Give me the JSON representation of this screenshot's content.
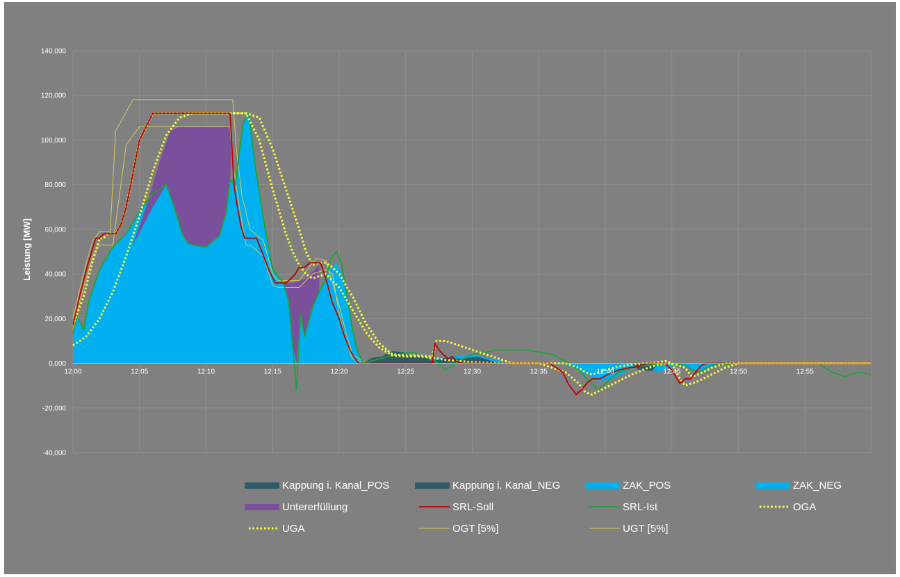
{
  "chart_data": {
    "type": "area",
    "title": "",
    "xlabel": "",
    "ylabel": "Leistung [MW]",
    "ylim": [
      -40000,
      140000
    ],
    "xlim": [
      0,
      60
    ],
    "grid": true,
    "legend_position": "bottom",
    "y_ticks": [
      140000,
      120000,
      100000,
      80000,
      60000,
      40000,
      20000,
      0,
      -20000,
      -40000
    ],
    "y_tick_labels": [
      "140,000",
      "120,000",
      "100,000",
      "80,000",
      "60,000",
      "40,000",
      "20,000",
      "0,000",
      "-20,000",
      "-40,000"
    ],
    "x_ticks": [
      0,
      5,
      10,
      15,
      20,
      25,
      30,
      35,
      40,
      45,
      50,
      55
    ],
    "x_tick_labels": [
      "12:00",
      "12:05",
      "12:10",
      "12:15",
      "12:20",
      "12:25",
      "12:30",
      "12:35",
      "12:40",
      "12:45",
      "12:50",
      "12:55"
    ],
    "series": [
      {
        "name": "Kappung i. Kanal_POS",
        "kind": "area",
        "color": "#2f5a68",
        "x": [
          21.8,
          22.5,
          23.2,
          24.0,
          24.8,
          25.6,
          26.2,
          27.0,
          28.0,
          29.2,
          30.4,
          31.2,
          32.0
        ],
        "y": [
          0,
          2500,
          3000,
          5500,
          5000,
          3000,
          3500,
          1000,
          2500,
          2000,
          3000,
          1500,
          0
        ]
      },
      {
        "name": "Kappung i. Kanal_NEG",
        "kind": "area",
        "color": "#2f5a68",
        "x": [
          42.0,
          42.5,
          43.5,
          44.0
        ],
        "y": [
          0,
          -3000,
          -3500,
          0
        ]
      },
      {
        "name": "ZAK_POS",
        "kind": "area",
        "color": "#00b0f0",
        "x": [
          0,
          0.3,
          0.8,
          1.2,
          2.0,
          3.0,
          4.0,
          5.0,
          6.0,
          7.0,
          7.6,
          8.2,
          8.6,
          9.0,
          10.0,
          11.0,
          11.5,
          11.8,
          12.2,
          12.8,
          13.2,
          13.7,
          14.3,
          15.0,
          15.8,
          16.2,
          16.5,
          16.8,
          17.1,
          17.4,
          18.0,
          18.5,
          19.0,
          19.4,
          19.8,
          20.2,
          20.6,
          21.0,
          21.4,
          21.8,
          23.0,
          24.0,
          25.5,
          27.0,
          28.5,
          30.0,
          31.5,
          33.0
        ],
        "y": [
          13000,
          21000,
          15000,
          28000,
          42000,
          52000,
          58000,
          68000,
          76000,
          80000,
          70000,
          58000,
          54000,
          53000,
          52000,
          57000,
          67000,
          82000,
          80000,
          108000,
          112000,
          88000,
          65000,
          42000,
          36000,
          28000,
          8000,
          0,
          22000,
          12000,
          25000,
          32000,
          38000,
          43000,
          45000,
          40000,
          30000,
          15000,
          5000,
          0,
          2000,
          3500,
          3000,
          2000,
          3000,
          4000,
          2000,
          0
        ]
      },
      {
        "name": "ZAK_NEG",
        "kind": "area",
        "color": "#00b0f0",
        "x": [
          37.0,
          38.5,
          39.5,
          40.5,
          41.5,
          42.0,
          42.5,
          44.0,
          45.5,
          46.5,
          47.5,
          48.5
        ],
        "y": [
          0,
          -4500,
          -8000,
          -7000,
          -4000,
          -2500,
          -500,
          -4000,
          -500,
          -2500,
          -3000,
          0
        ]
      },
      {
        "name": "Untererfüllung",
        "kind": "area",
        "color": "#7a4f9b",
        "x": [
          4.5,
          5.3,
          6.0,
          7.0,
          7.6,
          8.2,
          8.6,
          9.0,
          10.0,
          11.0,
          11.5,
          11.8,
          11.9,
          12.0,
          11.0,
          10.0,
          9.0,
          8.0,
          7.3,
          6.5,
          5.6,
          4.5
        ],
        "y": [
          53000,
          62000,
          70000,
          80000,
          70000,
          58000,
          54000,
          53000,
          52000,
          57000,
          67000,
          80000,
          106000,
          106000,
          106000,
          106000,
          106000,
          106000,
          104000,
          90000,
          72000,
          53000
        ]
      },
      {
        "name": "Untererfüllung",
        "kind": "area",
        "color": "#7a4f9b",
        "x": [
          15.8,
          16.2,
          16.5,
          16.8,
          17.1,
          17.4,
          18.0,
          18.5,
          18.5,
          17.5,
          16.5,
          15.8
        ],
        "y": [
          36000,
          28000,
          8000,
          0,
          22000,
          12000,
          25000,
          32000,
          44000,
          38000,
          36000,
          36000
        ]
      },
      {
        "name": "SRL-Soll",
        "kind": "line",
        "color": "#c00000",
        "x": [
          0,
          0.2,
          0.5,
          0.8,
          1.1,
          1.4,
          1.7,
          2.0,
          2.3,
          2.6,
          2.9,
          3.2,
          3.6,
          4.0,
          4.5,
          5.0,
          6.0,
          7.0,
          8.0,
          9.0,
          10.0,
          11.0,
          11.8,
          12.1,
          12.3,
          12.6,
          12.9,
          13.2,
          13.5,
          13.8,
          14.2,
          14.7,
          15.2,
          15.4,
          16.0,
          16.4,
          16.7,
          17.0,
          17.4,
          17.8,
          18.2,
          18.6,
          19.0,
          19.5,
          20.0,
          20.4,
          20.8,
          21.2,
          21.5,
          27.0,
          27.2,
          27.5,
          27.8,
          28.2,
          28.5,
          28.8,
          29.2,
          35.8,
          36.2,
          36.8,
          37.2,
          37.8,
          38.2,
          38.6,
          39.0,
          39.6,
          40.2,
          41.0,
          41.8,
          42.5,
          43.0,
          43.5,
          44.0,
          44.5,
          45.0,
          45.6,
          46.0,
          46.4,
          46.8,
          47.2,
          47.6,
          60
        ],
        "y": [
          17000,
          22000,
          30000,
          37000,
          44000,
          50000,
          56000,
          56000,
          58000,
          58000,
          58000,
          58000,
          62000,
          70000,
          85000,
          100000,
          112000,
          112000,
          112000,
          112000,
          112000,
          112000,
          112000,
          80000,
          72000,
          62000,
          56000,
          56000,
          56000,
          56000,
          50000,
          42000,
          36000,
          36000,
          36000,
          38000,
          40000,
          43000,
          43000,
          45000,
          45000,
          45000,
          38000,
          27000,
          20000,
          12000,
          6000,
          2000,
          0,
          0,
          9000,
          6000,
          4000,
          2000,
          3000,
          1000,
          0,
          0,
          -1500,
          -4000,
          -9000,
          -14000,
          -12000,
          -9000,
          -7000,
          -7000,
          -5000,
          -3000,
          -2000,
          -1500,
          0,
          0,
          0,
          0,
          -3000,
          -9000,
          -7000,
          -7000,
          -4000,
          -1000,
          0,
          0
        ]
      },
      {
        "name": "SRL-Ist",
        "kind": "line",
        "color": "#1fa33a",
        "x": [
          0,
          0.3,
          0.8,
          1.2,
          2.0,
          3.0,
          4.0,
          5.0,
          6.0,
          7.0,
          7.6,
          8.2,
          8.6,
          9.0,
          10.0,
          11.0,
          11.5,
          11.8,
          12.2,
          12.8,
          13.2,
          13.7,
          14.3,
          15.0,
          15.8,
          16.2,
          16.5,
          16.8,
          17.1,
          17.4,
          18.0,
          18.5,
          19.0,
          19.4,
          19.8,
          20.2,
          20.6,
          21.0,
          21.4,
          21.8,
          23.0,
          24.0,
          25.5,
          27.0,
          28.0,
          29.0,
          30.0,
          31.0,
          32.0,
          33.0,
          34.0,
          35.0,
          36.0,
          37.0,
          38.0,
          38.8,
          39.5,
          40.2,
          41.0,
          42.0,
          43.0,
          44.0,
          45.0,
          46.0,
          46.5,
          47.0,
          48.0,
          50.0,
          52.0,
          54.0,
          56.0,
          57.0,
          58.0,
          59.0,
          60.0
        ],
        "y": [
          13000,
          21000,
          15000,
          28000,
          42000,
          52000,
          58000,
          68000,
          76000,
          80000,
          70000,
          58000,
          54000,
          53000,
          52000,
          57000,
          67000,
          82000,
          80000,
          108000,
          112000,
          88000,
          65000,
          42000,
          36000,
          28000,
          8000,
          -12000,
          22000,
          12000,
          25000,
          32000,
          38000,
          47000,
          50000,
          44000,
          30000,
          15000,
          5000,
          0,
          2000,
          3500,
          5000,
          2000,
          -3000,
          1000,
          4000,
          5000,
          6000,
          6000,
          6000,
          5000,
          4000,
          1000,
          -3000,
          -8000,
          -12000,
          -8000,
          -4000,
          -2000,
          -1000,
          -500,
          0,
          -1000,
          -3000,
          -4000,
          -1000,
          0,
          0,
          0,
          0,
          -4000,
          -6000,
          -4000,
          -5000
        ]
      },
      {
        "name": "OGA",
        "kind": "dotted",
        "color": "#ffff33",
        "x": [
          0,
          0.3,
          0.8,
          1.1,
          1.4,
          1.7,
          2.0,
          2.3,
          2.6,
          2.9,
          3.2,
          3.6,
          4.0,
          4.5,
          5.0,
          6.0,
          7.0,
          8.0,
          9.0,
          10.0,
          11.0,
          12.0,
          13.0,
          14.0,
          15.0,
          16.0,
          17.0,
          17.5,
          18.0,
          18.5,
          19.0,
          19.5,
          20.0,
          21.0,
          22.0,
          23.0,
          24.0,
          25.0,
          26.0,
          27.0,
          27.3,
          28.0,
          29.0,
          30.0,
          31.0,
          32.0,
          33.0,
          35.0,
          37.0,
          38.0,
          38.5,
          39.0,
          40.0,
          41.0,
          42.0,
          43.0,
          44.0,
          44.5,
          45.0,
          46.0,
          46.5,
          47.0,
          48.0,
          49.0,
          50.0,
          60
        ],
        "y": [
          17000,
          22000,
          30000,
          37000,
          44000,
          50000,
          56000,
          56000,
          58000,
          58000,
          58000,
          62000,
          70000,
          85000,
          100000,
          112000,
          112000,
          112000,
          112000,
          112000,
          112000,
          112000,
          112000,
          110000,
          96000,
          78000,
          60000,
          50000,
          44000,
          45000,
          45000,
          43000,
          40000,
          30000,
          18000,
          9000,
          4000,
          3500,
          3500,
          3000,
          10000,
          10000,
          8000,
          6000,
          4000,
          2000,
          0,
          0,
          0,
          -2000,
          -4000,
          -5000,
          -3000,
          -1500,
          -500,
          0,
          500,
          1000,
          0,
          -2000,
          -6000,
          -5000,
          -2000,
          0,
          0,
          0
        ]
      },
      {
        "name": "UGA",
        "kind": "dotted",
        "color": "#ffff33",
        "x": [
          0,
          1.0,
          2.0,
          3.0,
          4.0,
          5.0,
          6.0,
          7.0,
          8.0,
          9.0,
          10.0,
          11.0,
          12.0,
          13.0,
          14.0,
          15.0,
          16.0,
          16.5,
          17.0,
          17.5,
          18.0,
          18.5,
          19.0,
          20.0,
          21.0,
          22.0,
          23.0,
          24.0,
          25.0,
          26.0,
          27.0,
          28.0,
          30.0,
          32.0,
          33.0,
          35.0,
          37.0,
          38.0,
          38.5,
          39.0,
          40.0,
          41.0,
          42.0,
          43.0,
          44.0,
          45.0,
          45.5,
          46.0,
          47.0,
          48.0,
          49.0,
          50.0,
          60
        ],
        "y": [
          8000,
          12000,
          20000,
          32000,
          48000,
          66000,
          86000,
          102000,
          110000,
          112000,
          112000,
          112000,
          112000,
          112000,
          100000,
          78000,
          58000,
          50000,
          44000,
          40000,
          38000,
          39000,
          40000,
          34000,
          24000,
          14000,
          7000,
          3500,
          3000,
          3000,
          2500,
          1500,
          500,
          0,
          0,
          0,
          -4000,
          -9000,
          -13000,
          -14000,
          -11000,
          -8000,
          -5000,
          -2500,
          -500,
          0,
          -6000,
          -10000,
          -8000,
          -5000,
          -2000,
          0,
          0
        ]
      },
      {
        "name": "OGT [5%]",
        "kind": "thin",
        "color": "#d4cc5c",
        "x": [
          0,
          0.5,
          1.0,
          1.5,
          2.0,
          2.8,
          3.2,
          4.5,
          5.0,
          11.0,
          11.5,
          12.0,
          12.3,
          12.7,
          13.3,
          14.3,
          15.0,
          15.4,
          16.0,
          17.0,
          18.0,
          18.3,
          19.0,
          20.0,
          20.5,
          21.0,
          22.0
        ],
        "y": [
          20000,
          33000,
          45000,
          55000,
          59000,
          59000,
          104000,
          118000,
          118000,
          118000,
          118000,
          118000,
          95000,
          75000,
          60000,
          55000,
          40000,
          37000,
          37000,
          37000,
          45000,
          47000,
          46000,
          26000,
          14000,
          4000,
          0
        ]
      },
      {
        "name": "UGT [5%]",
        "kind": "thin",
        "color": "#d4cc5c",
        "x": [
          0,
          0.5,
          1.0,
          1.5,
          2.0,
          3.0,
          4.0,
          5.0,
          6.0,
          7.0,
          7.3,
          7.5,
          11.5,
          11.8,
          12.0,
          12.5,
          13.0,
          13.3,
          14.3,
          15.0,
          15.4,
          17.0,
          18.0,
          19.0,
          19.5,
          20.0,
          20.5,
          21.0,
          22.0
        ],
        "y": [
          15000,
          28000,
          38000,
          48000,
          53000,
          53000,
          98000,
          106000,
          106000,
          106000,
          106000,
          106000,
          106000,
          106000,
          90000,
          70000,
          53000,
          53000,
          48000,
          35000,
          34000,
          34000,
          40000,
          42000,
          40000,
          22000,
          10000,
          2000,
          0
        ]
      }
    ],
    "legend": [
      {
        "label": "Kappung i. Kanal_POS",
        "swatch": "bar",
        "color": "#2f5a68"
      },
      {
        "label": "Kappung i. Kanal_NEG",
        "swatch": "bar",
        "color": "#2f5a68"
      },
      {
        "label": "ZAK_POS",
        "swatch": "bar",
        "color": "#00b0f0"
      },
      {
        "label": "ZAK_NEG",
        "swatch": "bar",
        "color": "#00b0f0"
      },
      {
        "label": "Untererfüllung",
        "swatch": "bar",
        "color": "#7a4f9b"
      },
      {
        "label": "SRL-Soll",
        "swatch": "line",
        "color": "#c00000"
      },
      {
        "label": "SRL-Ist",
        "swatch": "line",
        "color": "#1fa33a"
      },
      {
        "label": "OGA",
        "swatch": "dotted",
        "color": "#ffff33"
      },
      {
        "label": "UGA",
        "swatch": "dotted",
        "color": "#ffff33"
      },
      {
        "label": "OGT [5%]",
        "swatch": "thin",
        "color": "#d4cc5c"
      },
      {
        "label": "UGT [5%]",
        "swatch": "thin",
        "color": "#d4cc5c"
      }
    ]
  }
}
